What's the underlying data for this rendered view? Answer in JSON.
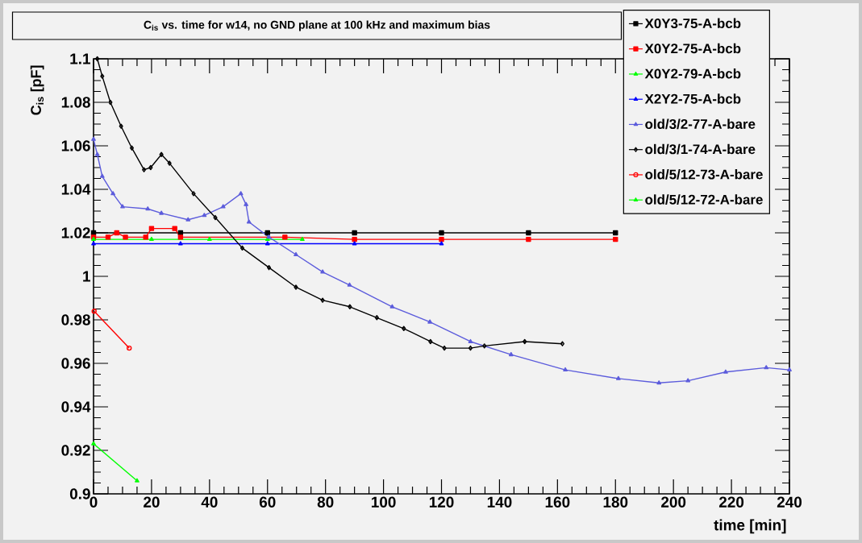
{
  "chart_data": {
    "type": "line",
    "title": "C$_{is}$ vs. time for w14, no GND plane at 100 kHz and maximum bias",
    "xlabel": "time [min]",
    "ylabel": "C$_{is}$ [pF]",
    "xlim": [
      0,
      240
    ],
    "ylim": [
      0.9,
      1.1
    ],
    "xticks": [
      0,
      20,
      40,
      60,
      80,
      100,
      120,
      140,
      160,
      180,
      200,
      220,
      240
    ],
    "yticks": [
      0.9,
      0.92,
      0.94,
      0.96,
      0.98,
      1,
      1.02,
      1.04,
      1.06,
      1.08,
      1.1
    ],
    "legend": "top right",
    "series": [
      {
        "name": "X0Y3-75-A-bcb",
        "color": "#000000",
        "marker": "square",
        "x": [
          0,
          30,
          60,
          90,
          120,
          150,
          180
        ],
        "values": [
          1.02,
          1.02,
          1.02,
          1.02,
          1.02,
          1.02,
          1.02
        ]
      },
      {
        "name": "X0Y2-75-A-bcb",
        "color": "#ff0000",
        "marker": "square",
        "x": [
          0,
          5,
          8,
          11,
          18,
          20,
          28,
          30,
          66,
          90,
          120,
          150,
          180
        ],
        "values": [
          1.018,
          1.018,
          1.02,
          1.018,
          1.018,
          1.022,
          1.022,
          1.018,
          1.018,
          1.017,
          1.017,
          1.017,
          1.017
        ]
      },
      {
        "name": "X0Y2-79-A-bcb",
        "color": "#00ff00",
        "marker": "triangle",
        "x": [
          0,
          20,
          40,
          60,
          72
        ],
        "values": [
          1.017,
          1.017,
          1.017,
          1.017,
          1.017
        ]
      },
      {
        "name": "X2Y2-75-A-bcb",
        "color": "#0000ff",
        "marker": "triangle",
        "x": [
          0,
          30,
          60,
          90,
          120
        ],
        "values": [
          1.015,
          1.015,
          1.015,
          1.015,
          1.015
        ]
      },
      {
        "name": "old/3/2-77-A-bare",
        "color": "#5c5cdc",
        "marker": "triangle",
        "x": [
          0,
          1.3,
          3,
          6.7,
          10,
          18.7,
          23.4,
          32.6,
          38.2,
          44.7,
          50.8,
          52.6,
          53.6,
          60.5,
          69.8,
          79,
          88.3,
          103,
          116,
          130,
          144,
          162.7,
          181,
          195,
          205,
          218,
          232,
          240
        ],
        "values": [
          1.063,
          1.056,
          1.046,
          1.038,
          1.032,
          1.031,
          1.029,
          1.026,
          1.028,
          1.032,
          1.038,
          1.033,
          1.025,
          1.018,
          1.01,
          1.002,
          0.996,
          0.986,
          0.979,
          0.97,
          0.964,
          0.957,
          0.953,
          0.951,
          0.952,
          0.956,
          0.958,
          0.957
        ]
      },
      {
        "name": "old/3/1-74-A-bare",
        "color": "#000000",
        "marker": "diamond",
        "x": [
          1.3,
          3,
          5.8,
          9.5,
          13.2,
          17.4,
          19.7,
          23.4,
          26.2,
          34.5,
          42,
          51.3,
          60.5,
          69.8,
          79,
          88.4,
          97.7,
          107,
          116.2,
          121,
          130,
          134.8,
          148.7,
          161.7
        ],
        "values": [
          1.1,
          1.092,
          1.08,
          1.069,
          1.059,
          1.049,
          1.05,
          1.056,
          1.052,
          1.038,
          1.027,
          1.013,
          1.004,
          0.995,
          0.989,
          0.986,
          0.981,
          0.976,
          0.97,
          0.967,
          0.967,
          0.968,
          0.97,
          0.969
        ]
      },
      {
        "name": "old/5/12-73-A-bare",
        "color": "#ff0000",
        "marker": "circle",
        "x": [
          0.2,
          12.3
        ],
        "values": [
          0.984,
          0.967
        ]
      },
      {
        "name": "old/5/12-72-A-bare",
        "color": "#00ff00",
        "marker": "triangle",
        "x": [
          0,
          15
        ],
        "values": [
          0.923,
          0.906
        ]
      }
    ]
  }
}
